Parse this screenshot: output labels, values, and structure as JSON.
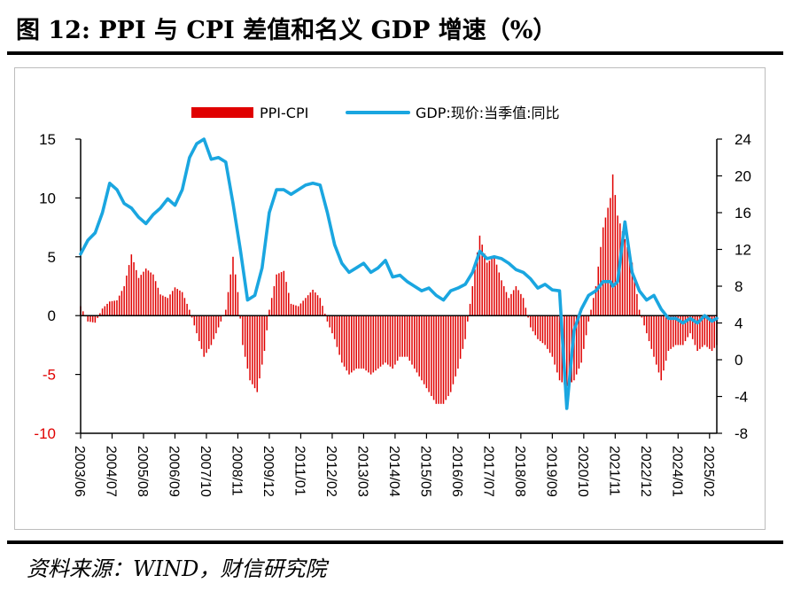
{
  "title": "图 12:  PPI 与 CPI 差值和名义 GDP 增速（%）",
  "source": "资料来源：WIND，财信研究院",
  "chart_data": {
    "type": "bar+line",
    "legend_position": "top",
    "grid": false,
    "left_axis": {
      "ylim": [
        -10,
        15
      ],
      "ticks": [
        -10,
        -5,
        0,
        5,
        10,
        15
      ],
      "negative_tick_color": "#e00000"
    },
    "right_axis": {
      "ylim": [
        -8,
        24
      ],
      "ticks": [
        -8,
        -4,
        0,
        4,
        8,
        12,
        16,
        20,
        24
      ]
    },
    "x_ticks": [
      "2003/06",
      "2004/07",
      "2005/08",
      "2006/09",
      "2007/10",
      "2008/11",
      "2009/12",
      "2011/01",
      "2012/02",
      "2013/03",
      "2014/04",
      "2015/05",
      "2016/06",
      "2017/07",
      "2018/08",
      "2019/09",
      "2020/10",
      "2021/11",
      "2022/12",
      "2024/01",
      "2025/02"
    ],
    "x_range": [
      "2003/06",
      "2025/05"
    ],
    "series": [
      {
        "name": "PPI-CPI",
        "type": "bar",
        "axis": "left",
        "color": "#e00000",
        "anchors": [
          [
            "2003/06",
            0.8
          ],
          [
            "2003/09",
            -0.5
          ],
          [
            "2003/12",
            -0.6
          ],
          [
            "2004/03",
            0.6
          ],
          [
            "2004/06",
            1.2
          ],
          [
            "2004/09",
            1.3
          ],
          [
            "2004/12",
            2.5
          ],
          [
            "2005/03",
            5.2
          ],
          [
            "2005/06",
            3.2
          ],
          [
            "2005/09",
            4.0
          ],
          [
            "2005/12",
            3.5
          ],
          [
            "2006/03",
            1.8
          ],
          [
            "2006/06",
            1.5
          ],
          [
            "2006/09",
            2.4
          ],
          [
            "2006/12",
            2.0
          ],
          [
            "2007/03",
            0.5
          ],
          [
            "2007/06",
            -1.5
          ],
          [
            "2007/09",
            -3.5
          ],
          [
            "2007/12",
            -2.5
          ],
          [
            "2008/03",
            -1.0
          ],
          [
            "2008/06",
            0.5
          ],
          [
            "2008/09",
            5.0
          ],
          [
            "2008/11",
            2.0
          ],
          [
            "2009/01",
            -2.5
          ],
          [
            "2009/04",
            -5.5
          ],
          [
            "2009/07",
            -6.5
          ],
          [
            "2009/10",
            -3.0
          ],
          [
            "2009/12",
            0.5
          ],
          [
            "2010/03",
            3.5
          ],
          [
            "2010/06",
            3.8
          ],
          [
            "2010/09",
            1.0
          ],
          [
            "2010/12",
            0.8
          ],
          [
            "2011/03",
            1.5
          ],
          [
            "2011/06",
            2.2
          ],
          [
            "2011/09",
            1.5
          ],
          [
            "2011/12",
            -0.5
          ],
          [
            "2012/03",
            -2.0
          ],
          [
            "2012/06",
            -4.0
          ],
          [
            "2012/09",
            -5.0
          ],
          [
            "2012/12",
            -4.5
          ],
          [
            "2013/03",
            -4.5
          ],
          [
            "2013/06",
            -5.0
          ],
          [
            "2013/09",
            -4.5
          ],
          [
            "2013/12",
            -4.0
          ],
          [
            "2014/03",
            -4.5
          ],
          [
            "2014/06",
            -3.5
          ],
          [
            "2014/09",
            -3.5
          ],
          [
            "2014/12",
            -4.5
          ],
          [
            "2015/03",
            -5.5
          ],
          [
            "2015/06",
            -6.5
          ],
          [
            "2015/09",
            -7.5
          ],
          [
            "2015/12",
            -7.5
          ],
          [
            "2016/03",
            -6.5
          ],
          [
            "2016/06",
            -4.5
          ],
          [
            "2016/09",
            -2.0
          ],
          [
            "2016/12",
            2.5
          ],
          [
            "2017/03",
            6.8
          ],
          [
            "2017/06",
            4.5
          ],
          [
            "2017/09",
            5.0
          ],
          [
            "2017/12",
            3.0
          ],
          [
            "2018/03",
            1.5
          ],
          [
            "2018/06",
            2.5
          ],
          [
            "2018/09",
            1.5
          ],
          [
            "2018/12",
            -1.0
          ],
          [
            "2019/03",
            -2.0
          ],
          [
            "2019/06",
            -2.5
          ],
          [
            "2019/09",
            -3.5
          ],
          [
            "2019/12",
            -5.5
          ],
          [
            "2020/03",
            -6.0
          ],
          [
            "2020/06",
            -5.5
          ],
          [
            "2020/09",
            -4.0
          ],
          [
            "2020/12",
            -0.5
          ],
          [
            "2021/03",
            2.5
          ],
          [
            "2021/06",
            7.5
          ],
          [
            "2021/09",
            10.0
          ],
          [
            "2021/10",
            12.0
          ],
          [
            "2021/12",
            8.5
          ],
          [
            "2022/03",
            6.5
          ],
          [
            "2022/06",
            4.5
          ],
          [
            "2022/09",
            0.5
          ],
          [
            "2022/12",
            -1.5
          ],
          [
            "2023/03",
            -3.5
          ],
          [
            "2023/06",
            -5.5
          ],
          [
            "2023/09",
            -3.0
          ],
          [
            "2023/12",
            -2.5
          ],
          [
            "2024/03",
            -2.5
          ],
          [
            "2024/06",
            -1.5
          ],
          [
            "2024/09",
            -3.0
          ],
          [
            "2024/12",
            -2.5
          ],
          [
            "2025/03",
            -3.0
          ],
          [
            "2025/05",
            -2.5
          ]
        ]
      },
      {
        "name": "GDP:现价:当季值:同比",
        "type": "line",
        "axis": "right",
        "color": "#1aa6e0",
        "points": [
          [
            "2003/06",
            11.5
          ],
          [
            "2003/09",
            13.0
          ],
          [
            "2003/12",
            13.8
          ],
          [
            "2004/03",
            16.0
          ],
          [
            "2004/06",
            19.2
          ],
          [
            "2004/09",
            18.5
          ],
          [
            "2004/12",
            17.0
          ],
          [
            "2005/03",
            16.5
          ],
          [
            "2005/06",
            15.5
          ],
          [
            "2005/09",
            14.8
          ],
          [
            "2005/12",
            15.8
          ],
          [
            "2006/03",
            16.5
          ],
          [
            "2006/06",
            17.5
          ],
          [
            "2006/09",
            16.8
          ],
          [
            "2006/12",
            18.5
          ],
          [
            "2007/03",
            22.0
          ],
          [
            "2007/06",
            23.5
          ],
          [
            "2007/09",
            24.0
          ],
          [
            "2007/12",
            21.8
          ],
          [
            "2008/03",
            22.0
          ],
          [
            "2008/06",
            21.5
          ],
          [
            "2008/09",
            17.0
          ],
          [
            "2008/12",
            12.0
          ],
          [
            "2009/03",
            6.5
          ],
          [
            "2009/06",
            7.0
          ],
          [
            "2009/09",
            10.0
          ],
          [
            "2009/12",
            16.0
          ],
          [
            "2010/03",
            18.5
          ],
          [
            "2010/06",
            18.5
          ],
          [
            "2010/09",
            18.0
          ],
          [
            "2010/12",
            18.5
          ],
          [
            "2011/03",
            19.0
          ],
          [
            "2011/06",
            19.2
          ],
          [
            "2011/09",
            19.0
          ],
          [
            "2011/12",
            16.0
          ],
          [
            "2012/03",
            12.5
          ],
          [
            "2012/06",
            10.5
          ],
          [
            "2012/09",
            9.5
          ],
          [
            "2012/12",
            10.0
          ],
          [
            "2013/03",
            10.5
          ],
          [
            "2013/06",
            9.5
          ],
          [
            "2013/09",
            10.0
          ],
          [
            "2013/12",
            10.8
          ],
          [
            "2014/03",
            9.0
          ],
          [
            "2014/06",
            9.2
          ],
          [
            "2014/09",
            8.5
          ],
          [
            "2014/12",
            8.0
          ],
          [
            "2015/03",
            7.5
          ],
          [
            "2015/06",
            7.8
          ],
          [
            "2015/09",
            7.0
          ],
          [
            "2015/12",
            6.5
          ],
          [
            "2016/03",
            7.5
          ],
          [
            "2016/06",
            7.8
          ],
          [
            "2016/09",
            8.2
          ],
          [
            "2016/12",
            9.5
          ],
          [
            "2017/03",
            11.8
          ],
          [
            "2017/06",
            11.0
          ],
          [
            "2017/09",
            11.2
          ],
          [
            "2017/12",
            11.0
          ],
          [
            "2018/03",
            10.5
          ],
          [
            "2018/06",
            9.8
          ],
          [
            "2018/09",
            9.5
          ],
          [
            "2018/12",
            8.8
          ],
          [
            "2019/03",
            7.8
          ],
          [
            "2019/06",
            8.2
          ],
          [
            "2019/09",
            7.6
          ],
          [
            "2019/12",
            7.5
          ],
          [
            "2020/03",
            -5.3
          ],
          [
            "2020/06",
            3.2
          ],
          [
            "2020/09",
            5.5
          ],
          [
            "2020/12",
            7.0
          ],
          [
            "2021/03",
            7.5
          ],
          [
            "2021/06",
            8.5
          ],
          [
            "2021/09",
            8.5
          ],
          [
            "2021/10",
            8.0
          ],
          [
            "2021/12",
            8.5
          ],
          [
            "2022/03",
            15.0
          ],
          [
            "2022/06",
            9.5
          ],
          [
            "2022/09",
            7.5
          ],
          [
            "2022/12",
            6.5
          ],
          [
            "2023/03",
            7.0
          ],
          [
            "2023/06",
            5.5
          ],
          [
            "2023/09",
            4.5
          ],
          [
            "2023/12",
            4.5
          ],
          [
            "2024/03",
            4.0
          ],
          [
            "2024/06",
            4.5
          ],
          [
            "2024/09",
            4.0
          ],
          [
            "2024/12",
            4.8
          ],
          [
            "2025/03",
            4.2
          ],
          [
            "2025/05",
            4.5
          ]
        ]
      }
    ]
  }
}
